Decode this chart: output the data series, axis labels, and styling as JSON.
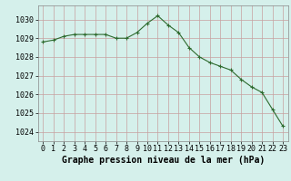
{
  "hours": [
    0,
    1,
    2,
    3,
    4,
    5,
    6,
    7,
    8,
    9,
    10,
    11,
    12,
    13,
    14,
    15,
    16,
    17,
    18,
    19,
    20,
    21,
    22,
    23
  ],
  "pressure": [
    1028.8,
    1028.9,
    1029.1,
    1029.2,
    1029.2,
    1029.2,
    1029.2,
    1029.0,
    1029.0,
    1029.3,
    1029.8,
    1030.2,
    1029.7,
    1029.3,
    1028.5,
    1028.0,
    1027.7,
    1027.5,
    1027.3,
    1026.8,
    1026.4,
    1026.1,
    1025.2,
    1024.3
  ],
  "line_color": "#2d6a2d",
  "marker": "+",
  "marker_size": 3,
  "background_color": "#d5f0eb",
  "grid_color": "#c8a0a0",
  "xlabel": "Graphe pression niveau de la mer (hPa)",
  "xlabel_fontsize": 7,
  "ylabel_fontsize": 6,
  "tick_fontsize": 6,
  "ylim": [
    1023.5,
    1030.75
  ],
  "xlim": [
    -0.5,
    23.5
  ],
  "yticks": [
    1024,
    1025,
    1026,
    1027,
    1028,
    1029,
    1030
  ],
  "xticks": [
    0,
    1,
    2,
    3,
    4,
    5,
    6,
    7,
    8,
    9,
    10,
    11,
    12,
    13,
    14,
    15,
    16,
    17,
    18,
    19,
    20,
    21,
    22,
    23
  ]
}
